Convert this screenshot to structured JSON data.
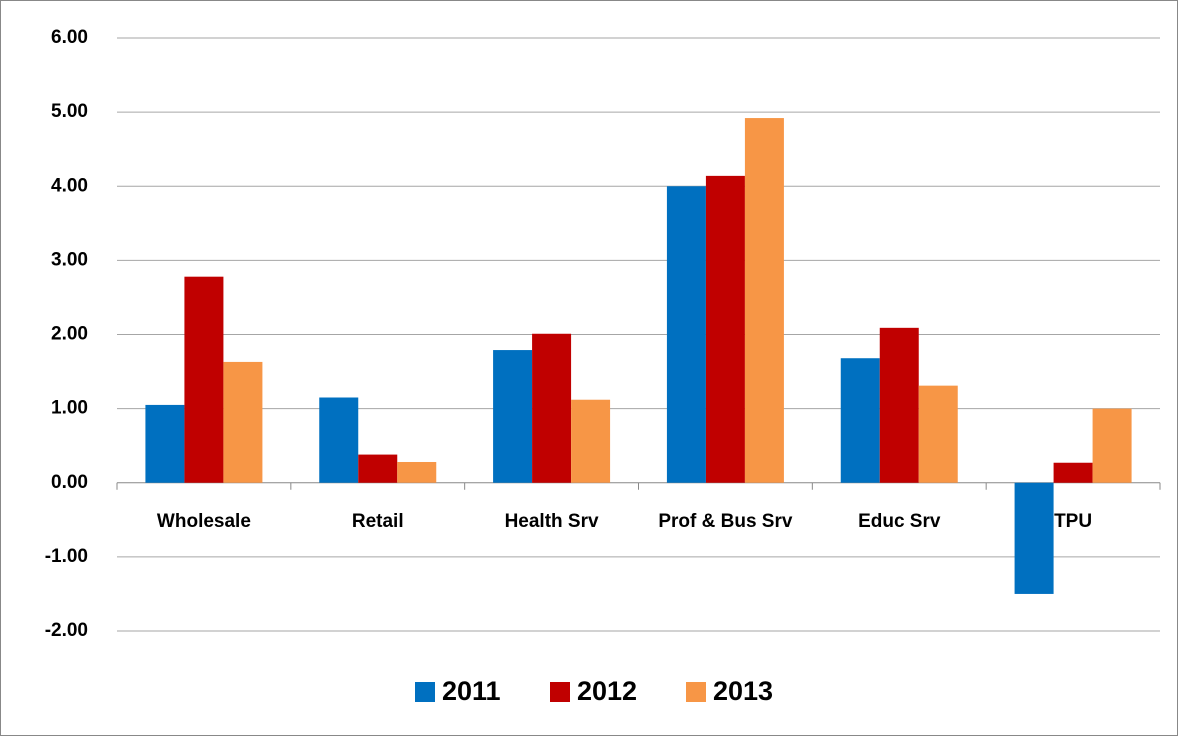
{
  "chart_data": {
    "type": "bar",
    "categories": [
      "Wholesale",
      "Retail",
      "Health Srv",
      "Prof & Bus Srv",
      "Educ Srv",
      "TPU"
    ],
    "series": [
      {
        "name": "2011",
        "color": "#0070c0",
        "values": [
          1.05,
          1.15,
          1.79,
          4.0,
          1.68,
          -1.5
        ]
      },
      {
        "name": "2012",
        "color": "#c00000",
        "values": [
          2.78,
          0.38,
          2.01,
          4.14,
          2.09,
          0.27
        ]
      },
      {
        "name": "2013",
        "color": "#f79646",
        "values": [
          1.63,
          0.28,
          1.12,
          4.92,
          1.31,
          1.0
        ]
      }
    ],
    "ylim": [
      -2,
      6
    ],
    "yticks": [
      {
        "value": -2,
        "label": "-2.00"
      },
      {
        "value": -1,
        "label": "-1.00"
      },
      {
        "value": 0,
        "label": "0.00"
      },
      {
        "value": 1,
        "label": "1.00"
      },
      {
        "value": 2,
        "label": "2.00"
      },
      {
        "value": 3,
        "label": "3.00"
      },
      {
        "value": 4,
        "label": "4.00"
      },
      {
        "value": 5,
        "label": "5.00"
      },
      {
        "value": 6,
        "label": "6.00"
      }
    ],
    "grid": true,
    "legend": "bottom"
  }
}
